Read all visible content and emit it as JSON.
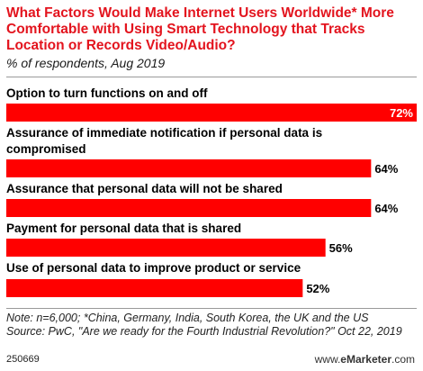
{
  "chart_data": {
    "type": "bar",
    "orientation": "horizontal",
    "title": "What Factors Would Make Internet Users Worldwide* More Comfortable with Using Smart Technology that Tracks Location or Records Video/Audio?",
    "subtitle": "% of respondents, Aug 2019",
    "categories": [
      "Option to turn functions on and off",
      "Assurance of immediate notification if personal data is compromised",
      "Assurance that personal data will not be shared",
      "Payment for personal data that is shared",
      "Use of personal data to improve product or service"
    ],
    "values": [
      72,
      64,
      64,
      56,
      52
    ],
    "value_labels": [
      "72%",
      "64%",
      "64%",
      "56%",
      "52%"
    ],
    "xlim": [
      0,
      72
    ],
    "bar_color": "#ff0000",
    "grid": false,
    "legend": "none"
  },
  "note": "Note: n=6,000; *China, Germany, India, South Korea, the UK and the US\nSource: PwC, \"Are we ready for the Fourth Industrial Revolution?\" Oct 22, 2019",
  "footer": {
    "id": "250669",
    "brand_prefix": "www.",
    "brand_name": "eMarketer",
    "brand_suffix": ".com"
  }
}
